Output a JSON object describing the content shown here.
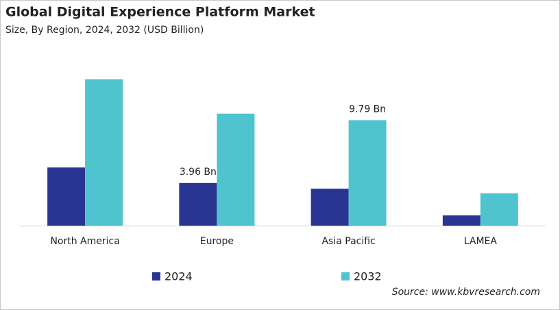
{
  "chart_data": {
    "type": "bar",
    "title": "Global Digital Experience Platform Market",
    "subtitle": "Size, By Region, 2024, 2032 (USD Billion)",
    "categories": [
      "North America",
      "Europe",
      "Asia Pacific",
      "LAMEA"
    ],
    "series": [
      {
        "name": "2024",
        "color": "#283593",
        "values": [
          5.4,
          3.96,
          3.43,
          0.95
        ],
        "value_labels": [
          null,
          "3.96 Bn",
          null,
          null
        ]
      },
      {
        "name": "2032",
        "color": "#4fc4cf",
        "values": [
          13.6,
          10.4,
          9.79,
          3.0
        ],
        "value_labels": [
          null,
          null,
          "9.79 Bn",
          null
        ]
      }
    ],
    "source": "Source: www.kbvresearch.com"
  }
}
